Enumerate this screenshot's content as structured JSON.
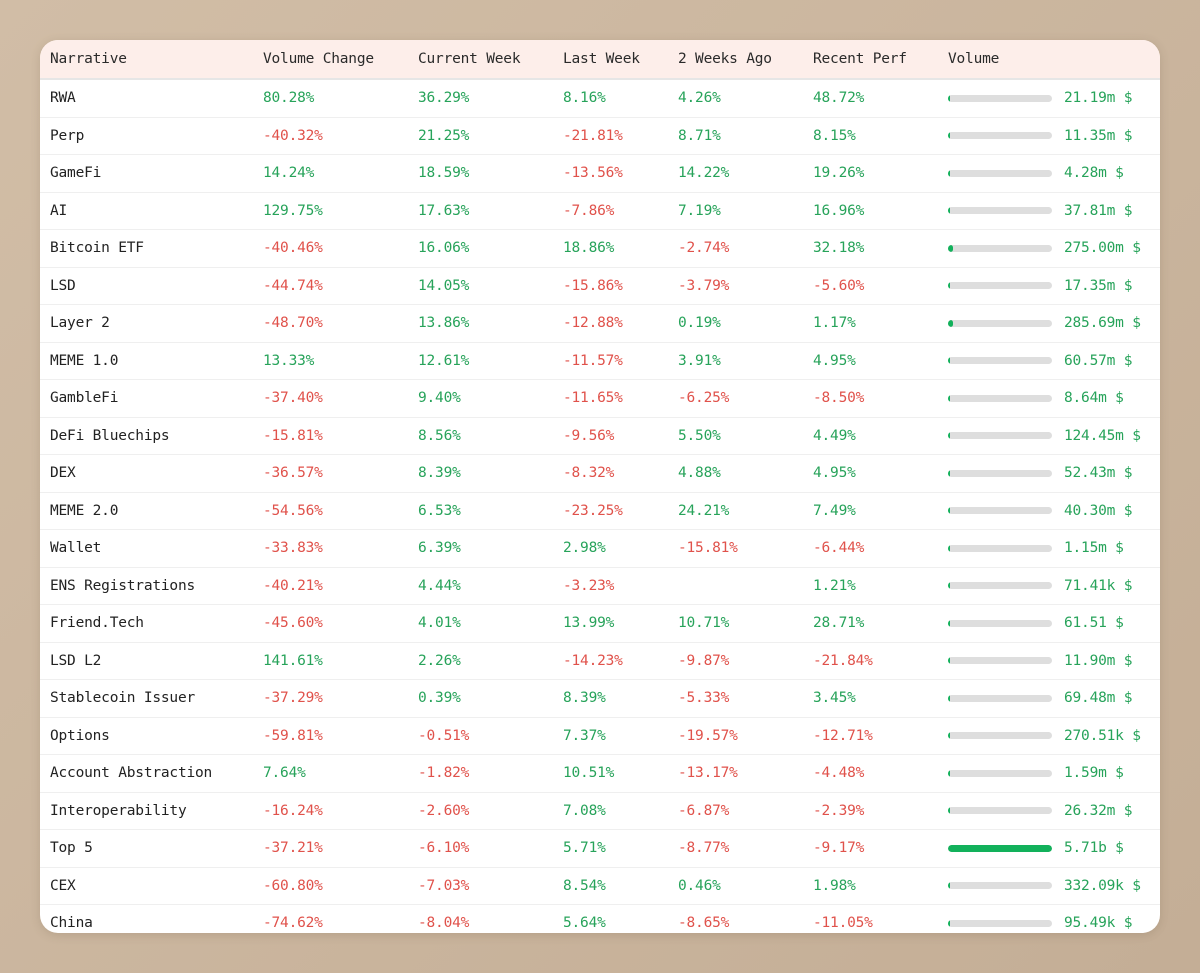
{
  "colors": {
    "positive": "#27a35a",
    "negative": "#e0524b",
    "bar_fill": "#12b15b",
    "bar_track": "#dedede",
    "header_bg": "#fdeeea"
  },
  "table": {
    "headers": [
      "Narrative",
      "Volume Change",
      "Current Week",
      "Last Week",
      "2 Weeks Ago",
      "Recent Perf",
      "Volume"
    ],
    "rows": [
      {
        "name": "RWA",
        "volume_change": "80.28%",
        "current_week": "36.29%",
        "last_week": "8.16%",
        "two_weeks_ago": "4.26%",
        "recent_perf": "48.72%",
        "volume_label": "21.19m $",
        "volume_share": 0.004
      },
      {
        "name": "Perp",
        "volume_change": "-40.32%",
        "current_week": "21.25%",
        "last_week": "-21.81%",
        "two_weeks_ago": "8.71%",
        "recent_perf": "8.15%",
        "volume_label": "11.35m $",
        "volume_share": 0.002
      },
      {
        "name": "GameFi",
        "volume_change": "14.24%",
        "current_week": "18.59%",
        "last_week": "-13.56%",
        "two_weeks_ago": "14.22%",
        "recent_perf": "19.26%",
        "volume_label": "4.28m $",
        "volume_share": 0.001
      },
      {
        "name": "AI",
        "volume_change": "129.75%",
        "current_week": "17.63%",
        "last_week": "-7.86%",
        "two_weeks_ago": "7.19%",
        "recent_perf": "16.96%",
        "volume_label": "37.81m $",
        "volume_share": 0.007
      },
      {
        "name": "Bitcoin ETF",
        "volume_change": "-40.46%",
        "current_week": "16.06%",
        "last_week": "18.86%",
        "two_weeks_ago": "-2.74%",
        "recent_perf": "32.18%",
        "volume_label": "275.00m $",
        "volume_share": 0.048
      },
      {
        "name": "LSD",
        "volume_change": "-44.74%",
        "current_week": "14.05%",
        "last_week": "-15.86%",
        "two_weeks_ago": "-3.79%",
        "recent_perf": "-5.60%",
        "volume_label": "17.35m $",
        "volume_share": 0.003
      },
      {
        "name": "Layer 2",
        "volume_change": "-48.70%",
        "current_week": "13.86%",
        "last_week": "-12.88%",
        "two_weeks_ago": "0.19%",
        "recent_perf": "1.17%",
        "volume_label": "285.69m $",
        "volume_share": 0.05
      },
      {
        "name": "MEME 1.0",
        "volume_change": "13.33%",
        "current_week": "12.61%",
        "last_week": "-11.57%",
        "two_weeks_ago": "3.91%",
        "recent_perf": "4.95%",
        "volume_label": "60.57m $",
        "volume_share": 0.011
      },
      {
        "name": "GambleFi",
        "volume_change": "-37.40%",
        "current_week": "9.40%",
        "last_week": "-11.65%",
        "two_weeks_ago": "-6.25%",
        "recent_perf": "-8.50%",
        "volume_label": "8.64m $",
        "volume_share": 0.002
      },
      {
        "name": "DeFi Bluechips",
        "volume_change": "-15.81%",
        "current_week": "8.56%",
        "last_week": "-9.56%",
        "two_weeks_ago": "5.50%",
        "recent_perf": "4.49%",
        "volume_label": "124.45m $",
        "volume_share": 0.022
      },
      {
        "name": "DEX",
        "volume_change": "-36.57%",
        "current_week": "8.39%",
        "last_week": "-8.32%",
        "two_weeks_ago": "4.88%",
        "recent_perf": "4.95%",
        "volume_label": "52.43m $",
        "volume_share": 0.009
      },
      {
        "name": "MEME 2.0",
        "volume_change": "-54.56%",
        "current_week": "6.53%",
        "last_week": "-23.25%",
        "two_weeks_ago": "24.21%",
        "recent_perf": "7.49%",
        "volume_label": "40.30m $",
        "volume_share": 0.007
      },
      {
        "name": "Wallet",
        "volume_change": "-33.83%",
        "current_week": "6.39%",
        "last_week": "2.98%",
        "two_weeks_ago": "-15.81%",
        "recent_perf": "-6.44%",
        "volume_label": "1.15m $",
        "volume_share": 0.0002
      },
      {
        "name": "ENS Registrations",
        "volume_change": "-40.21%",
        "current_week": "4.44%",
        "last_week": "-3.23%",
        "two_weeks_ago": "",
        "recent_perf": "1.21%",
        "volume_label": "71.41k $",
        "volume_share": 1e-05
      },
      {
        "name": "Friend.Tech",
        "volume_change": "-45.60%",
        "current_week": "4.01%",
        "last_week": "13.99%",
        "two_weeks_ago": "10.71%",
        "recent_perf": "28.71%",
        "volume_label": "61.51 $",
        "volume_share": 0.0
      },
      {
        "name": "LSD L2",
        "volume_change": "141.61%",
        "current_week": "2.26%",
        "last_week": "-14.23%",
        "two_weeks_ago": "-9.87%",
        "recent_perf": "-21.84%",
        "volume_label": "11.90m $",
        "volume_share": 0.002
      },
      {
        "name": "Stablecoin Issuer",
        "volume_change": "-37.29%",
        "current_week": "0.39%",
        "last_week": "8.39%",
        "two_weeks_ago": "-5.33%",
        "recent_perf": "3.45%",
        "volume_label": "69.48m $",
        "volume_share": 0.012
      },
      {
        "name": "Options",
        "volume_change": "-59.81%",
        "current_week": "-0.51%",
        "last_week": "7.37%",
        "two_weeks_ago": "-19.57%",
        "recent_perf": "-12.71%",
        "volume_label": "270.51k $",
        "volume_share": 5e-05
      },
      {
        "name": "Account Abstraction",
        "volume_change": "7.64%",
        "current_week": "-1.82%",
        "last_week": "10.51%",
        "two_weeks_ago": "-13.17%",
        "recent_perf": "-4.48%",
        "volume_label": "1.59m $",
        "volume_share": 0.0003
      },
      {
        "name": "Interoperability",
        "volume_change": "-16.24%",
        "current_week": "-2.60%",
        "last_week": "7.08%",
        "two_weeks_ago": "-6.87%",
        "recent_perf": "-2.39%",
        "volume_label": "26.32m $",
        "volume_share": 0.005
      },
      {
        "name": "Top 5",
        "volume_change": "-37.21%",
        "current_week": "-6.10%",
        "last_week": "5.71%",
        "two_weeks_ago": "-8.77%",
        "recent_perf": "-9.17%",
        "volume_label": "5.71b $",
        "volume_share": 1.0
      },
      {
        "name": "CEX",
        "volume_change": "-60.80%",
        "current_week": "-7.03%",
        "last_week": "8.54%",
        "two_weeks_ago": "0.46%",
        "recent_perf": "1.98%",
        "volume_label": "332.09k $",
        "volume_share": 6e-05
      },
      {
        "name": "China",
        "volume_change": "-74.62%",
        "current_week": "-8.04%",
        "last_week": "5.64%",
        "two_weeks_ago": "-8.65%",
        "recent_perf": "-11.05%",
        "volume_label": "95.49k $",
        "volume_share": 2e-05
      }
    ]
  }
}
